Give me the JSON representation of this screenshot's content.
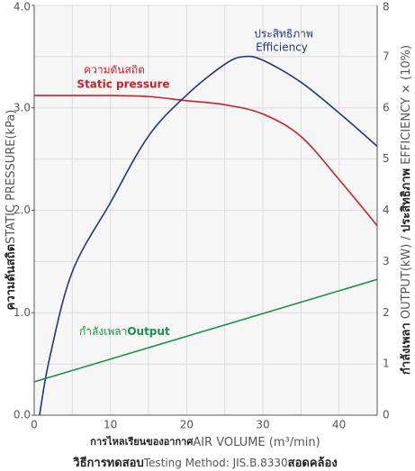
{
  "chart_data": {
    "type": "line",
    "x_label": {
      "thai": "การไหลเรียนของอากาศ",
      "english": "AIR VOLUME (m³/min)"
    },
    "y_label": {
      "thai": "ความดันสถิต",
      "english": "STATIC PRESSURE(kPa)"
    },
    "y2_label": {
      "thai_output": "กำลังเพลา",
      "english_output": " OUTPUT(kW) / ",
      "thai_efficiency": "ประสิทธิภาพ",
      "english_efficiency": " EFFICIENCY × (10%)"
    },
    "footnote": {
      "thai_method": "วิธีการทดสอบ",
      "english": "Testing Method: JIS.B.8330",
      "thai_conform": "สอดคล้อง"
    },
    "annotations": {
      "efficiency_thai": "ประสิทธิภาพ",
      "efficiency_english": "Efficiency",
      "pressure_thai": "ความดันสถิต",
      "pressure_english": "Static pressure",
      "output_thai": "กำลังเพลา",
      "output_english": "Output"
    },
    "xlim": [
      0,
      45
    ],
    "xticks": [
      0,
      10,
      20,
      30,
      40
    ],
    "x_minor_ticks": [
      5,
      15,
      25,
      35,
      45
    ],
    "ylim": [
      0,
      4
    ],
    "yticks": [
      {
        "value": 0,
        "label": "0.0"
      },
      {
        "value": 1,
        "label": "1.0"
      },
      {
        "value": 2,
        "label": "2.0"
      },
      {
        "value": 3,
        "label": "3.0"
      },
      {
        "value": 4,
        "label": "4.0"
      }
    ],
    "y2lim": [
      0,
      8
    ],
    "y2ticks": [
      0,
      1,
      2,
      3,
      4,
      5,
      6,
      7,
      8
    ],
    "grid": true,
    "series": [
      {
        "name": "Static pressure",
        "color": "#c8202c",
        "x": [
          0,
          5,
          10,
          15,
          20,
          25,
          30,
          35,
          40,
          45
        ],
        "values": [
          3.12,
          3.12,
          3.12,
          3.11,
          3.07,
          3.03,
          2.94,
          2.72,
          2.3,
          1.85
        ]
      },
      {
        "name": "Efficiency",
        "color": "#233580",
        "axis": "y2",
        "x": [
          0.7,
          2,
          5,
          10,
          15,
          20,
          25,
          27.5,
          30,
          35,
          40,
          45
        ],
        "values": [
          0,
          1.1,
          2.8,
          4.15,
          5.45,
          6.25,
          6.85,
          7.0,
          6.93,
          6.5,
          5.9,
          5.25
        ]
      },
      {
        "name": "Output",
        "color": "#1a9146",
        "axis": "y2",
        "x": [
          0,
          45
        ],
        "values": [
          0.65,
          2.65
        ]
      }
    ]
  }
}
